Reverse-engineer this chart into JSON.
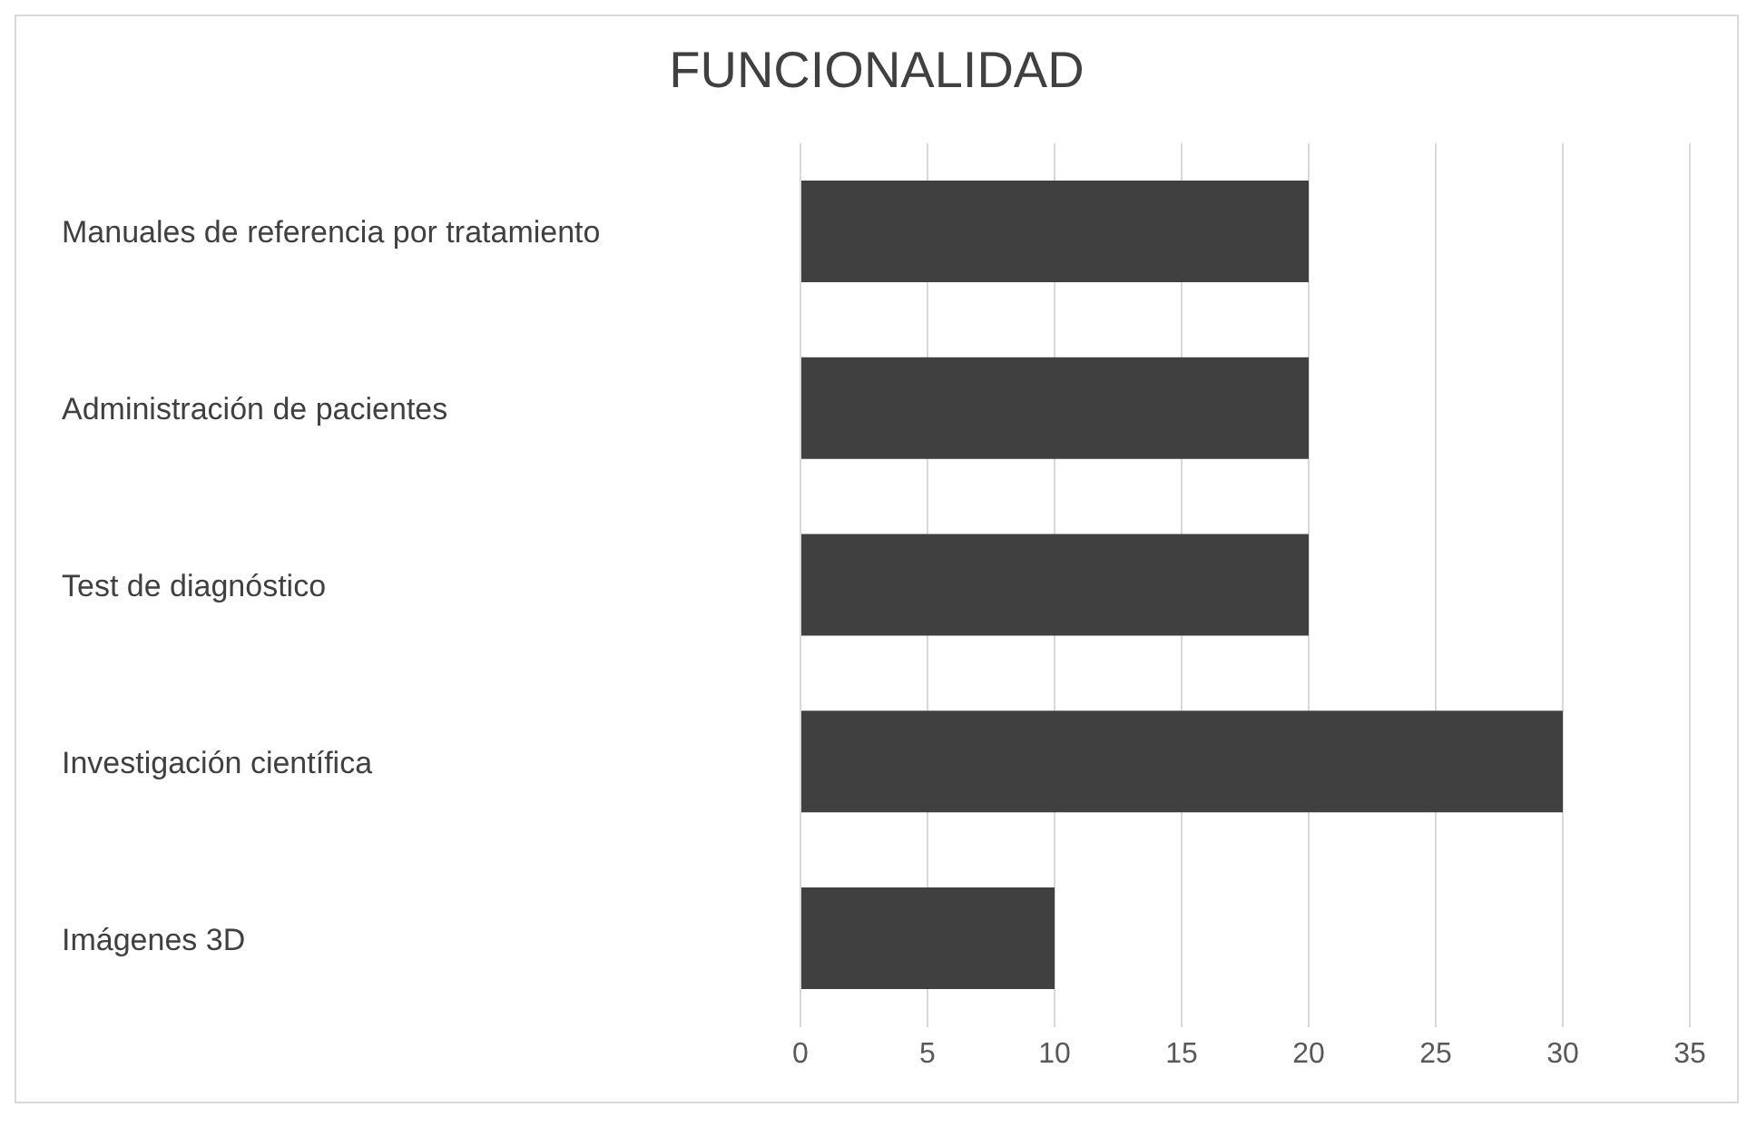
{
  "chart_data": {
    "type": "bar",
    "orientation": "horizontal",
    "title": "FUNCIONALIDAD",
    "categories": [
      "Manuales de referencia por tratamiento",
      "Administración de pacientes",
      "Test de diagnóstico",
      "Investigación científica",
      "Imágenes 3D"
    ],
    "values": [
      20,
      20,
      20,
      30,
      10
    ],
    "color": "#404040",
    "xlim": [
      0,
      35
    ],
    "xticks": [
      0,
      5,
      10,
      15,
      20,
      25,
      30,
      35
    ],
    "grid": "x"
  }
}
